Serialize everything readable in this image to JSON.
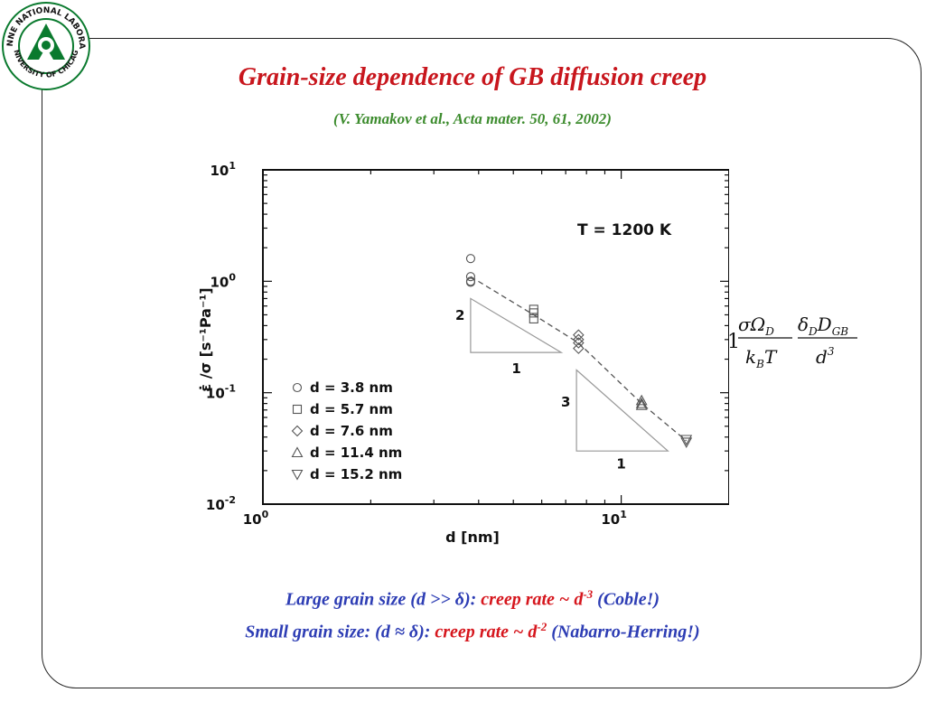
{
  "title": "Grain-size dependence of GB diffusion creep",
  "subtitle": "(V. Yamakov et al., Acta mater. 50, 61, 2002)",
  "logo": {
    "text_top": "ARGONNE NATIONAL LABORATORY",
    "text_bottom": "UNIVERSITY OF CHICAGO",
    "color": "#0a7a2e"
  },
  "chart_data": {
    "type": "scatter",
    "x_scale": "log",
    "y_scale": "log",
    "xlim": [
      1,
      20
    ],
    "ylim": [
      0.01,
      10
    ],
    "xlabel": "d [nm]",
    "ylabel": "ε̇ /σ [s⁻¹Pa⁻¹]",
    "annotation": "T = 1200 K",
    "x_ticks": [
      {
        "base": "10",
        "exp": "0",
        "value": 1
      },
      {
        "base": "10",
        "exp": "1",
        "value": 10
      }
    ],
    "y_ticks": [
      {
        "base": "10",
        "exp": "1",
        "value": 10
      },
      {
        "base": "10",
        "exp": "0",
        "value": 1
      },
      {
        "base": "10",
        "exp": "-1",
        "value": 0.1
      },
      {
        "base": "10",
        "exp": "-2",
        "value": 0.01
      }
    ],
    "series": [
      {
        "name": "d = 3.8 nm",
        "marker": "circle",
        "x": [
          3.8,
          3.8,
          3.8,
          3.8
        ],
        "y": [
          1.6,
          1.1,
          1.0,
          0.98
        ]
      },
      {
        "name": "d = 5.7 nm",
        "marker": "square",
        "x": [
          5.7,
          5.7,
          5.7
        ],
        "y": [
          0.56,
          0.52,
          0.46
        ]
      },
      {
        "name": "d = 7.6 nm",
        "marker": "diamond",
        "x": [
          7.6,
          7.6,
          7.6,
          7.6
        ],
        "y": [
          0.33,
          0.3,
          0.28,
          0.25
        ]
      },
      {
        "name": "d = 11.4 nm",
        "marker": "triangle-up",
        "x": [
          11.4,
          11.4,
          11.4
        ],
        "y": [
          0.085,
          0.08,
          0.077
        ]
      },
      {
        "name": "d = 15.2 nm",
        "marker": "triangle-down",
        "x": [
          15.2,
          15.2
        ],
        "y": [
          0.038,
          0.036
        ]
      }
    ],
    "fit_line": {
      "x": [
        3.8,
        5.7,
        7.6,
        11.4,
        15.2
      ],
      "y": [
        1.1,
        0.5,
        0.28,
        0.08,
        0.037
      ]
    },
    "slope_triangles": [
      {
        "vertical_label": "2",
        "horizontal_label": "1"
      },
      {
        "vertical_label": "3",
        "horizontal_label": "1"
      }
    ]
  },
  "formula": {
    "prefix": "1",
    "num1": "σΩ",
    "num1_sub": "D",
    "den1": "k",
    "den1_sub": "B",
    "den1_tail": "T",
    "num2": "δ",
    "num2_sub": "D",
    "num2_mid": "D",
    "num2_sub2": "GB",
    "den2": "d",
    "den2_sup": "3"
  },
  "bottom": {
    "line1_a": "Large grain size (d >> δ): ",
    "line1_b": "creep rate ~ d",
    "line1_sup": "-3",
    "line1_c": " (Coble!)",
    "line2_a": "Small grain size: (d ≈ δ): ",
    "line2_b": "creep rate ~ d",
    "line2_sup": "-2",
    "line2_c": " (Nabarro-Herring!)"
  }
}
